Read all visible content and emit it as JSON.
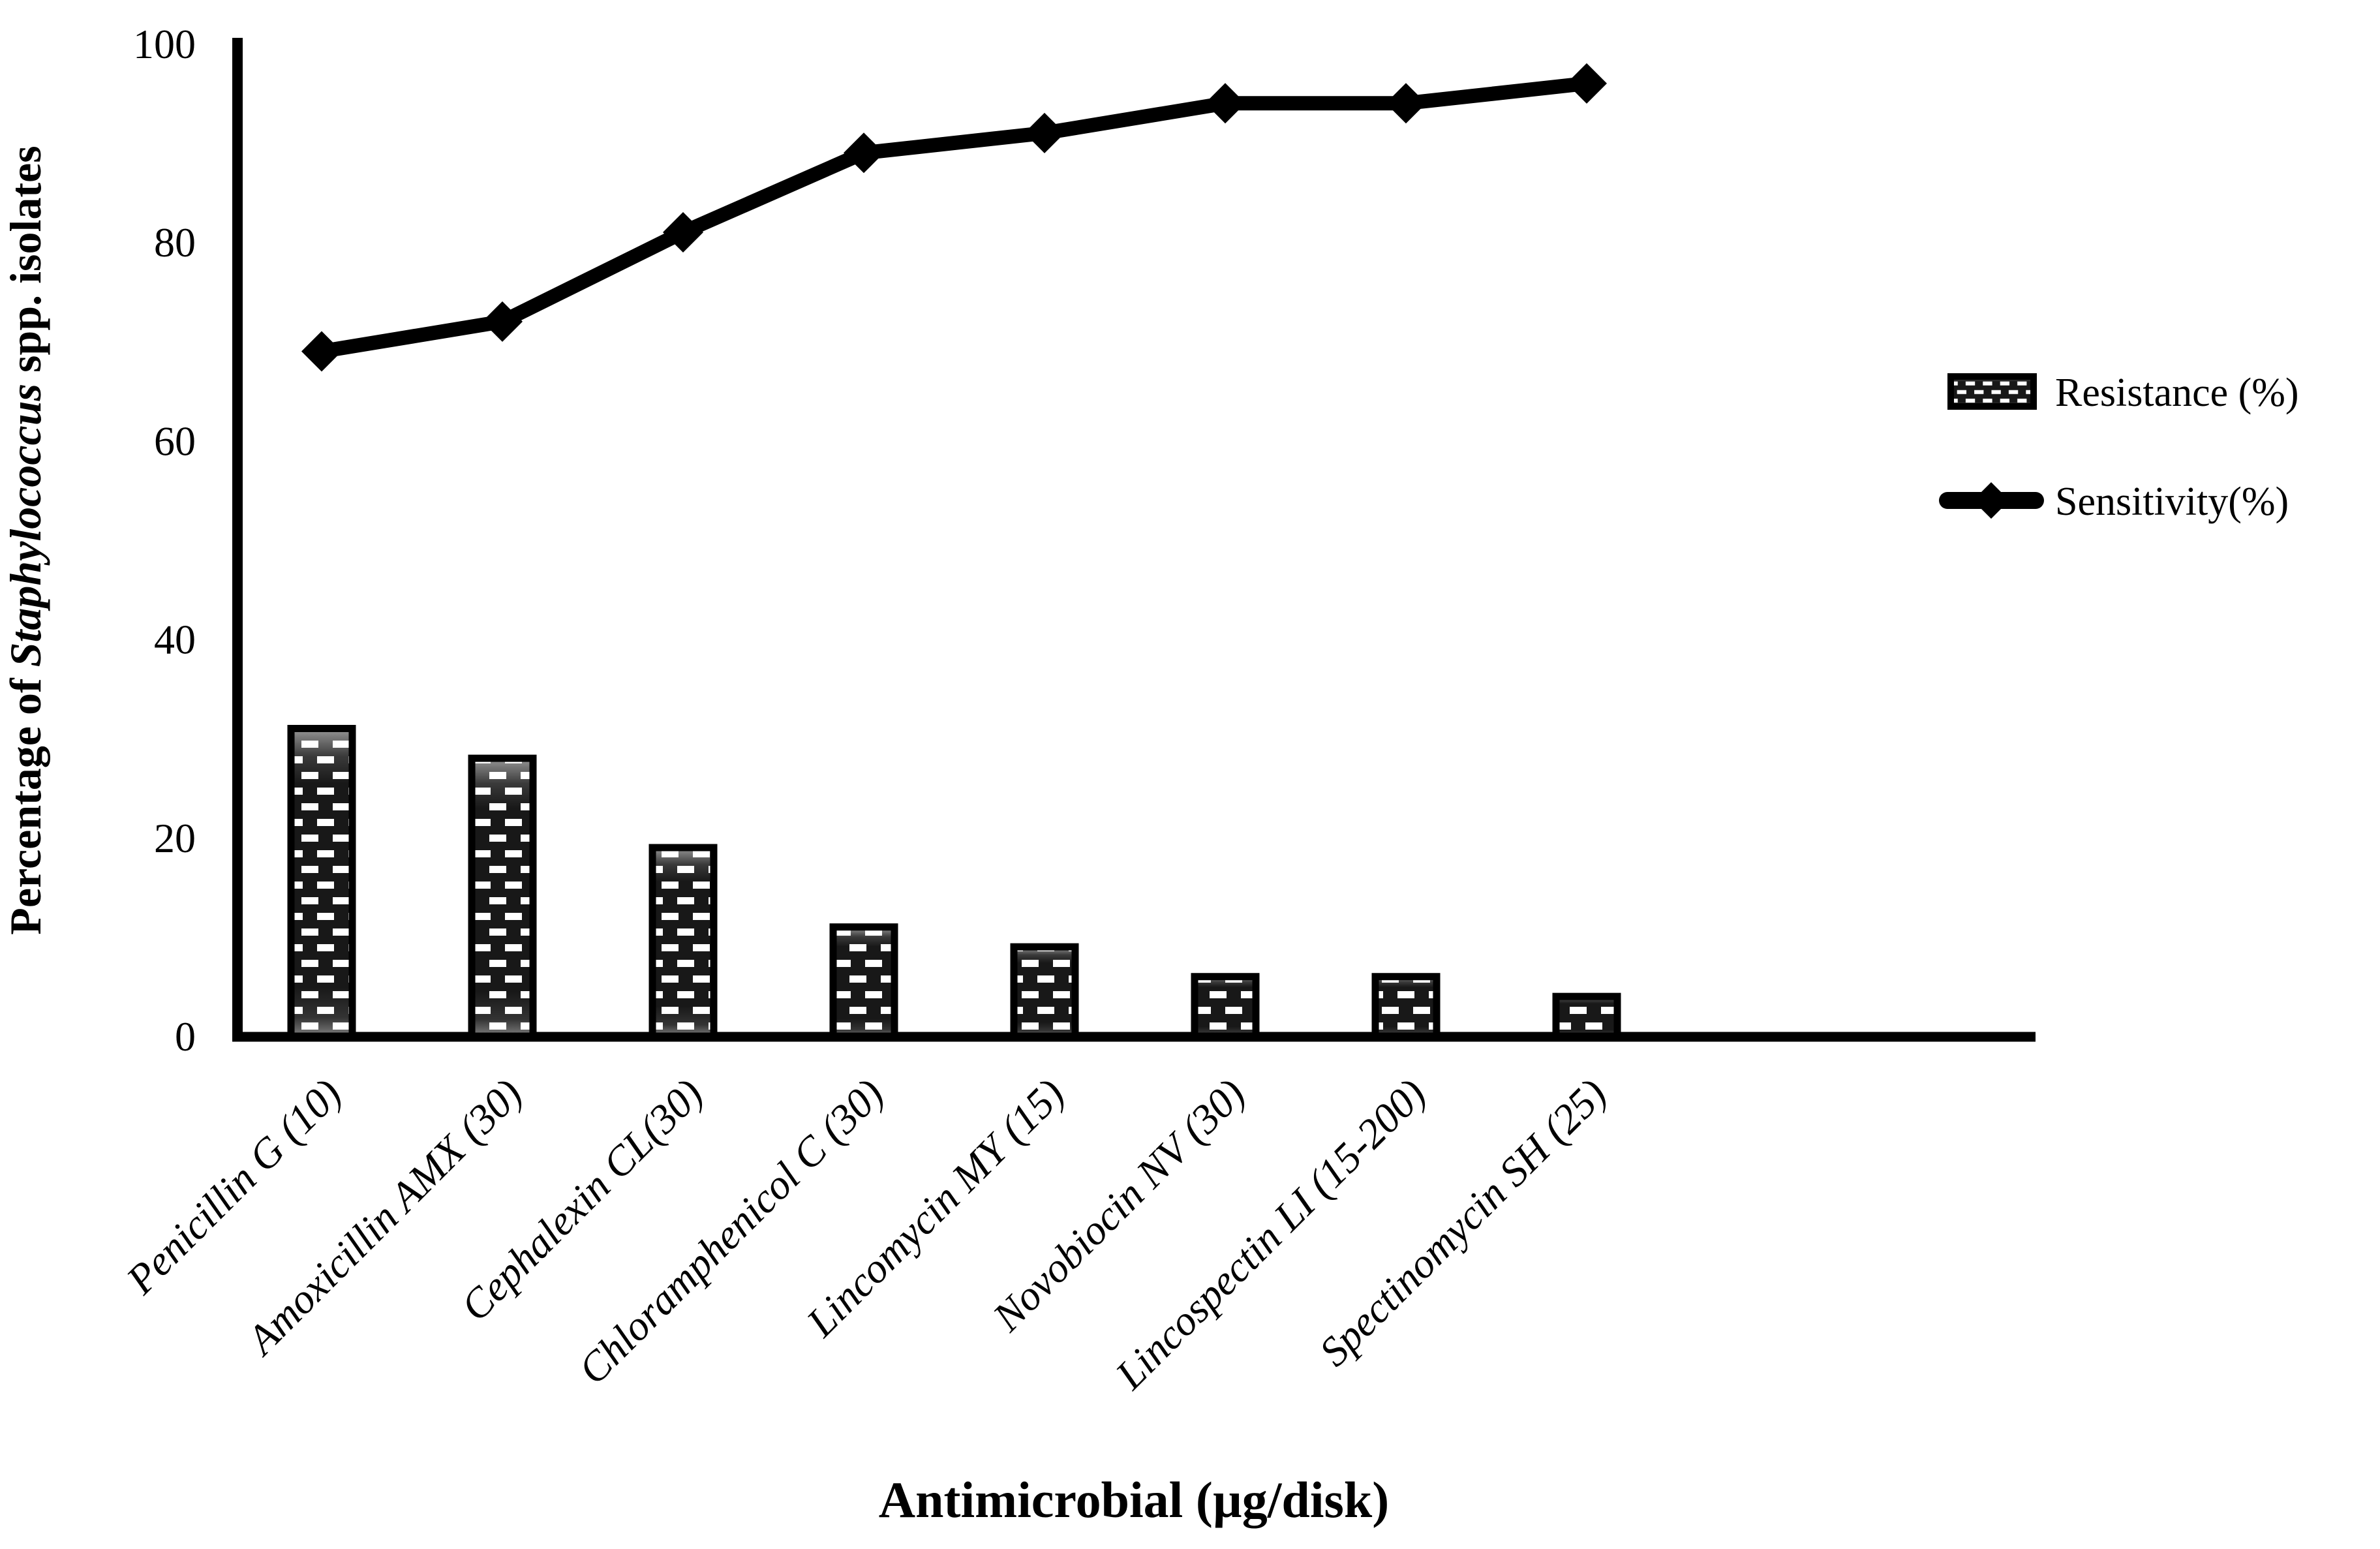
{
  "figure": {
    "description": "Combination chart of antimicrobial resistance and sensitivity percentages of Staphylococcus spp. isolates",
    "background_color": "#ffffff",
    "ink_color": "#000000"
  },
  "chart_data": {
    "type": "bar",
    "combo": true,
    "title": "",
    "categories": [
      "Penicillin G (10)",
      "Amoxicillin AMX (30)",
      "Cephalexin CL(30)",
      "Chloramphenicol C (30)",
      "Lincomycin MY (15)",
      "Novobiocin NV (30)",
      "Lincospectin LI (15-200)",
      "Spectinomycin SH (25)"
    ],
    "series": [
      {
        "name": "Resistance (%)",
        "type": "bar",
        "swatch": "patterned-bar",
        "values": [
          31,
          28,
          19,
          11,
          9,
          6,
          6,
          4
        ]
      },
      {
        "name": "Sensitivity(%)",
        "type": "line",
        "swatch": "diamond-line",
        "values": [
          69,
          72,
          81,
          89,
          91,
          94,
          94,
          96
        ]
      }
    ],
    "xlabel": "Antimicrobial (µg/disk)",
    "ylabel": "Percentage of Staphylococcus spp. isolates",
    "ylabel_parts": {
      "prefix": "Percentage of ",
      "italic": "Staphylococcus",
      "suffix": " spp. isolates"
    },
    "ylim": [
      0,
      100
    ],
    "yticks": [
      0,
      20,
      40,
      60,
      80,
      100
    ],
    "grid": false,
    "x_tick_rotation_deg": 45,
    "legend_position": "right",
    "bar_fill_pattern": "white dashes on black (brick pattern)",
    "line_marker": "diamond"
  }
}
